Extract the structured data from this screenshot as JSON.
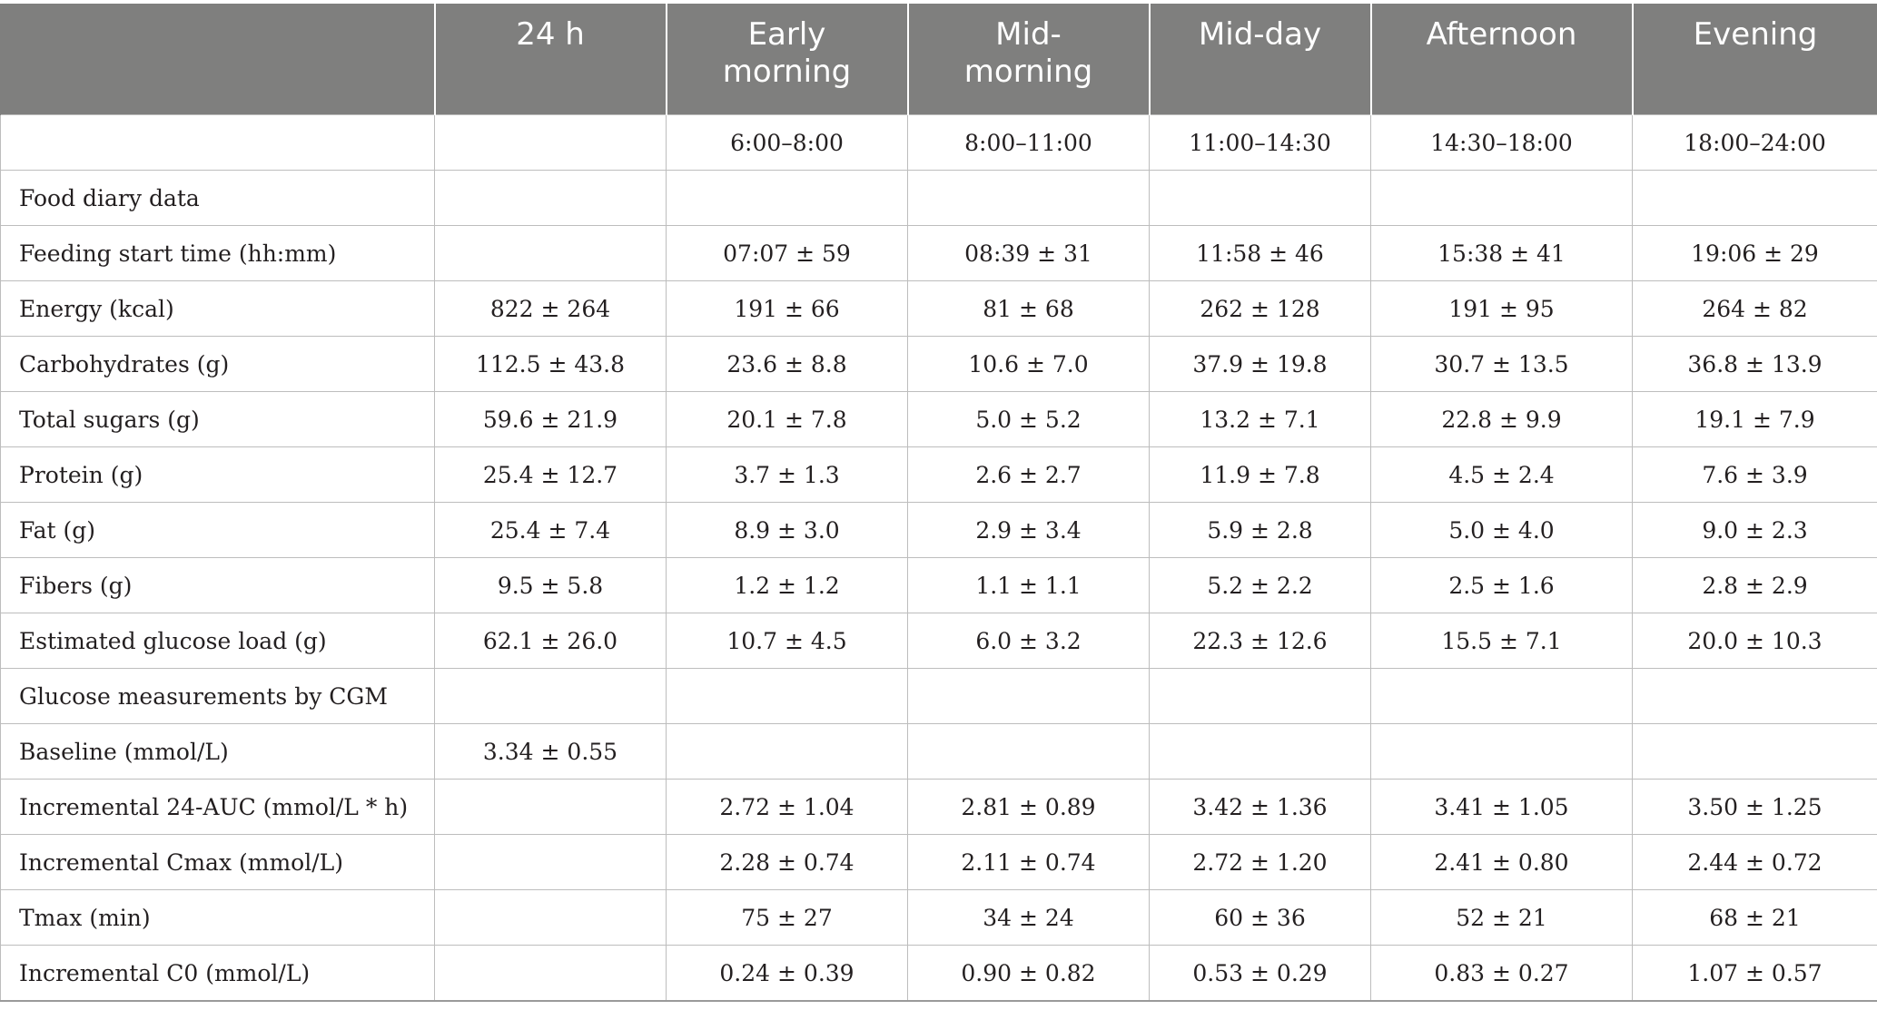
{
  "header": [
    "",
    "24 h",
    "Early morning",
    "Mid-morning",
    "Mid-day",
    "Afternoon",
    "Evening"
  ],
  "rows": [
    [
      "",
      "",
      "6:00–8:00",
      "8:00–11:00",
      "11:00–14:30",
      "14:30–18:00",
      "18:00–24:00"
    ],
    [
      "Food diary data",
      "",
      "",
      "",
      "",
      "",
      ""
    ],
    [
      "Feeding start time (hh:mm)",
      "",
      "07:07 ± 59",
      "08:39 ± 31",
      "11:58 ± 46",
      "15:38 ± 41",
      "19:06 ± 29"
    ],
    [
      "Energy (kcal)",
      "822 ± 264",
      "191 ± 66",
      "81 ± 68",
      "262 ± 128",
      "191 ± 95",
      "264 ± 82"
    ],
    [
      "Carbohydrates (g)",
      "112.5 ± 43.8",
      "23.6 ± 8.8",
      "10.6 ± 7.0",
      "37.9 ± 19.8",
      "30.7 ± 13.5",
      "36.8 ± 13.9"
    ],
    [
      "Total sugars (g)",
      "59.6 ± 21.9",
      "20.1 ± 7.8",
      "5.0 ± 5.2",
      "13.2 ± 7.1",
      "22.8 ± 9.9",
      "19.1 ± 7.9"
    ],
    [
      "Protein (g)",
      "25.4 ± 12.7",
      "3.7 ± 1.3",
      "2.6 ± 2.7",
      "11.9 ± 7.8",
      "4.5 ± 2.4",
      "7.6 ± 3.9"
    ],
    [
      "Fat (g)",
      "25.4 ± 7.4",
      "8.9 ± 3.0",
      "2.9 ± 3.4",
      "5.9 ± 2.8",
      "5.0 ± 4.0",
      "9.0 ± 2.3"
    ],
    [
      "Fibers (g)",
      "9.5 ± 5.8",
      "1.2 ± 1.2",
      "1.1 ± 1.1",
      "5.2 ± 2.2",
      "2.5 ± 1.6",
      "2.8 ± 2.9"
    ],
    [
      "Estimated glucose load (g)",
      "62.1 ± 26.0",
      "10.7 ± 4.5",
      "6.0 ± 3.2",
      "22.3 ± 12.6",
      "15.5 ± 7.1",
      "20.0 ± 10.3"
    ],
    [
      "Glucose measurements by CGM",
      "",
      "",
      "",
      "",
      "",
      ""
    ],
    [
      "Baseline (mmol/L)",
      "3.34 ± 0.55",
      "",
      "",
      "",
      "",
      ""
    ],
    [
      "Incremental 24-AUC (mmol/L * h)",
      "",
      "2.72 ± 1.04",
      "2.81 ± 0.89",
      "3.42 ± 1.36",
      "3.41 ± 1.05",
      "3.50 ± 1.25"
    ],
    [
      "Incremental Cmax (mmol/L)",
      "",
      "2.28 ± 0.74",
      "2.11 ± 0.74",
      "2.72 ± 1.20",
      "2.41 ± 0.80",
      "2.44 ± 0.72"
    ],
    [
      "Tmax (min)",
      "",
      "75 ± 27",
      "34 ± 24",
      "60 ± 36",
      "52 ± 21",
      "68 ± 21"
    ],
    [
      "Incremental C0 (mmol/L)",
      "",
      "0.24 ± 0.39",
      "0.90 ± 0.82",
      "0.53 ± 0.29",
      "0.83 ± 0.27",
      "1.07 ± 0.57"
    ]
  ]
}
